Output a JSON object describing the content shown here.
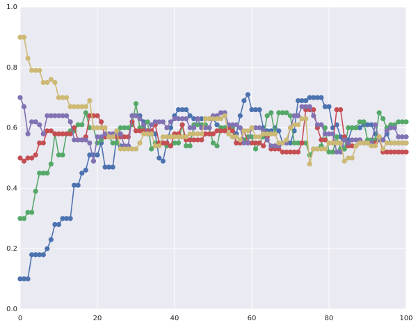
{
  "chart_data": {
    "type": "line",
    "x": [
      0,
      1,
      2,
      3,
      4,
      5,
      6,
      7,
      8,
      9,
      10,
      11,
      12,
      13,
      14,
      15,
      16,
      17,
      18,
      19,
      20,
      21,
      22,
      23,
      24,
      25,
      26,
      27,
      28,
      29,
      30,
      31,
      32,
      33,
      34,
      35,
      36,
      37,
      38,
      39,
      40,
      41,
      42,
      43,
      44,
      45,
      46,
      47,
      48,
      49,
      50,
      51,
      52,
      53,
      54,
      55,
      56,
      57,
      58,
      59,
      60,
      61,
      62,
      63,
      64,
      65,
      66,
      67,
      68,
      69,
      70,
      71,
      72,
      73,
      74,
      75,
      76,
      77,
      78,
      79,
      80,
      81,
      82,
      83,
      84,
      85,
      86,
      87,
      88,
      89,
      90,
      91,
      92,
      93,
      94,
      95,
      96,
      97,
      98,
      99,
      100
    ],
    "series": [
      {
        "color": "#4c72b0",
        "values": [
          0.1,
          0.1,
          0.1,
          0.18,
          0.18,
          0.18,
          0.18,
          0.2,
          0.23,
          0.28,
          0.28,
          0.3,
          0.3,
          0.3,
          0.41,
          0.41,
          0.45,
          0.46,
          0.51,
          0.51,
          0.51,
          0.55,
          0.47,
          0.47,
          0.47,
          0.57,
          0.54,
          0.54,
          0.54,
          0.64,
          0.64,
          0.64,
          0.62,
          0.58,
          0.58,
          0.58,
          0.5,
          0.49,
          0.55,
          0.6,
          0.64,
          0.66,
          0.66,
          0.66,
          0.64,
          0.63,
          0.63,
          0.63,
          0.63,
          0.63,
          0.63,
          0.61,
          0.6,
          0.6,
          0.6,
          0.6,
          0.58,
          0.64,
          0.69,
          0.71,
          0.66,
          0.66,
          0.66,
          0.6,
          0.59,
          0.59,
          0.6,
          0.59,
          0.55,
          0.55,
          0.55,
          0.59,
          0.69,
          0.69,
          0.69,
          0.7,
          0.7,
          0.7,
          0.7,
          0.67,
          0.67,
          0.6,
          0.61,
          0.57,
          0.53,
          0.56,
          0.6,
          0.6,
          0.6,
          0.61,
          0.61,
          0.61,
          0.58,
          0.56,
          0.56,
          0.58,
          0.55,
          0.55,
          0.55,
          0.55,
          0.55
        ]
      },
      {
        "color": "#55a868",
        "values": [
          0.3,
          0.3,
          0.32,
          0.32,
          0.39,
          0.45,
          0.45,
          0.45,
          0.48,
          0.58,
          0.51,
          0.51,
          0.58,
          0.59,
          0.59,
          0.61,
          0.61,
          0.65,
          0.6,
          0.6,
          0.55,
          0.56,
          0.57,
          0.57,
          0.55,
          0.55,
          0.6,
          0.6,
          0.6,
          0.61,
          0.68,
          0.6,
          0.6,
          0.62,
          0.53,
          0.55,
          0.55,
          0.55,
          0.54,
          0.54,
          0.55,
          0.55,
          0.61,
          0.54,
          0.54,
          0.61,
          0.61,
          0.61,
          0.61,
          0.6,
          0.55,
          0.54,
          0.6,
          0.6,
          0.6,
          0.6,
          0.55,
          0.55,
          0.56,
          0.57,
          0.57,
          0.53,
          0.55,
          0.57,
          0.64,
          0.65,
          0.58,
          0.65,
          0.65,
          0.65,
          0.64,
          0.55,
          0.55,
          0.55,
          0.55,
          0.51,
          0.53,
          0.53,
          0.54,
          0.6,
          0.52,
          0.52,
          0.57,
          0.53,
          0.53,
          0.6,
          0.6,
          0.6,
          0.62,
          0.62,
          0.56,
          0.56,
          0.56,
          0.65,
          0.63,
          0.6,
          0.61,
          0.61,
          0.62,
          0.62,
          0.62
        ]
      },
      {
        "color": "#c44e52",
        "values": [
          0.5,
          0.49,
          0.5,
          0.5,
          0.51,
          0.55,
          0.55,
          0.59,
          0.59,
          0.58,
          0.58,
          0.58,
          0.58,
          0.58,
          0.6,
          0.56,
          0.56,
          0.57,
          0.64,
          0.64,
          0.64,
          0.62,
          0.57,
          0.57,
          0.57,
          0.57,
          0.57,
          0.57,
          0.57,
          0.62,
          0.59,
          0.59,
          0.59,
          0.59,
          0.59,
          0.61,
          0.55,
          0.55,
          0.55,
          0.54,
          0.58,
          0.58,
          0.61,
          0.56,
          0.56,
          0.56,
          0.56,
          0.56,
          0.58,
          0.58,
          0.58,
          0.59,
          0.59,
          0.59,
          0.6,
          0.59,
          0.55,
          0.55,
          0.59,
          0.55,
          0.55,
          0.55,
          0.55,
          0.54,
          0.57,
          0.53,
          0.53,
          0.53,
          0.52,
          0.52,
          0.52,
          0.52,
          0.52,
          0.55,
          0.66,
          0.66,
          0.66,
          0.6,
          0.56,
          0.56,
          0.55,
          0.55,
          0.66,
          0.66,
          0.57,
          0.54,
          0.54,
          0.54,
          0.56,
          0.55,
          0.55,
          0.55,
          0.55,
          0.57,
          0.52,
          0.52,
          0.52,
          0.52,
          0.52,
          0.52,
          0.52
        ]
      },
      {
        "color": "#8172b2",
        "values": [
          0.7,
          0.67,
          0.58,
          0.62,
          0.62,
          0.61,
          0.58,
          0.64,
          0.64,
          0.64,
          0.64,
          0.64,
          0.64,
          0.62,
          0.56,
          0.56,
          0.56,
          0.56,
          0.55,
          0.49,
          0.57,
          0.57,
          0.58,
          0.58,
          0.58,
          0.58,
          0.58,
          0.54,
          0.54,
          0.64,
          0.64,
          0.63,
          0.61,
          0.58,
          0.61,
          0.62,
          0.62,
          0.62,
          0.6,
          0.62,
          0.63,
          0.63,
          0.63,
          0.63,
          0.6,
          0.6,
          0.63,
          0.6,
          0.6,
          0.6,
          0.64,
          0.64,
          0.65,
          0.65,
          0.61,
          0.61,
          0.61,
          0.6,
          0.55,
          0.55,
          0.6,
          0.6,
          0.6,
          0.59,
          0.56,
          0.54,
          0.54,
          0.54,
          0.55,
          0.55,
          0.6,
          0.64,
          0.64,
          0.67,
          0.67,
          0.67,
          0.64,
          0.61,
          0.61,
          0.58,
          0.58,
          0.58,
          0.52,
          0.52,
          0.56,
          0.55,
          0.56,
          0.56,
          0.56,
          0.55,
          0.55,
          0.55,
          0.61,
          0.56,
          0.56,
          0.59,
          0.6,
          0.6,
          0.57,
          0.57,
          0.57
        ]
      },
      {
        "color": "#ccb974",
        "values": [
          0.9,
          0.9,
          0.83,
          0.79,
          0.79,
          0.79,
          0.75,
          0.75,
          0.76,
          0.75,
          0.7,
          0.7,
          0.7,
          0.67,
          0.67,
          0.67,
          0.67,
          0.67,
          0.69,
          0.6,
          0.6,
          0.6,
          0.6,
          0.57,
          0.57,
          0.59,
          0.53,
          0.53,
          0.53,
          0.53,
          0.53,
          0.55,
          0.58,
          0.58,
          0.58,
          0.54,
          0.54,
          0.57,
          0.57,
          0.57,
          0.57,
          0.57,
          0.57,
          0.57,
          0.58,
          0.58,
          0.58,
          0.58,
          0.63,
          0.63,
          0.63,
          0.63,
          0.63,
          0.64,
          0.58,
          0.57,
          0.57,
          0.56,
          0.59,
          0.59,
          0.6,
          0.57,
          0.57,
          0.58,
          0.58,
          0.58,
          0.58,
          0.55,
          0.55,
          0.56,
          0.6,
          0.61,
          0.61,
          0.63,
          0.63,
          0.48,
          0.53,
          0.53,
          0.53,
          0.53,
          0.55,
          0.55,
          0.55,
          0.55,
          0.49,
          0.5,
          0.5,
          0.54,
          0.55,
          0.55,
          0.55,
          0.54,
          0.54,
          0.57,
          0.53,
          0.55,
          0.55,
          0.55,
          0.55,
          0.55,
          0.55
        ]
      }
    ],
    "xlim": [
      0,
      100
    ],
    "xticks": [
      0,
      20,
      40,
      60,
      80,
      100
    ],
    "ylim": [
      0,
      1
    ],
    "yticks": [
      {
        "value": 0,
        "label": "0.0"
      },
      {
        "value": 0.2,
        "label": "0.2"
      },
      {
        "value": 0.4,
        "label": "0.4"
      },
      {
        "value": 0.6,
        "label": "0.6"
      },
      {
        "value": 0.8,
        "label": "0.8"
      },
      {
        "value": 1,
        "label": "1.0"
      }
    ],
    "grid": true,
    "background": "#eaeaf2"
  }
}
